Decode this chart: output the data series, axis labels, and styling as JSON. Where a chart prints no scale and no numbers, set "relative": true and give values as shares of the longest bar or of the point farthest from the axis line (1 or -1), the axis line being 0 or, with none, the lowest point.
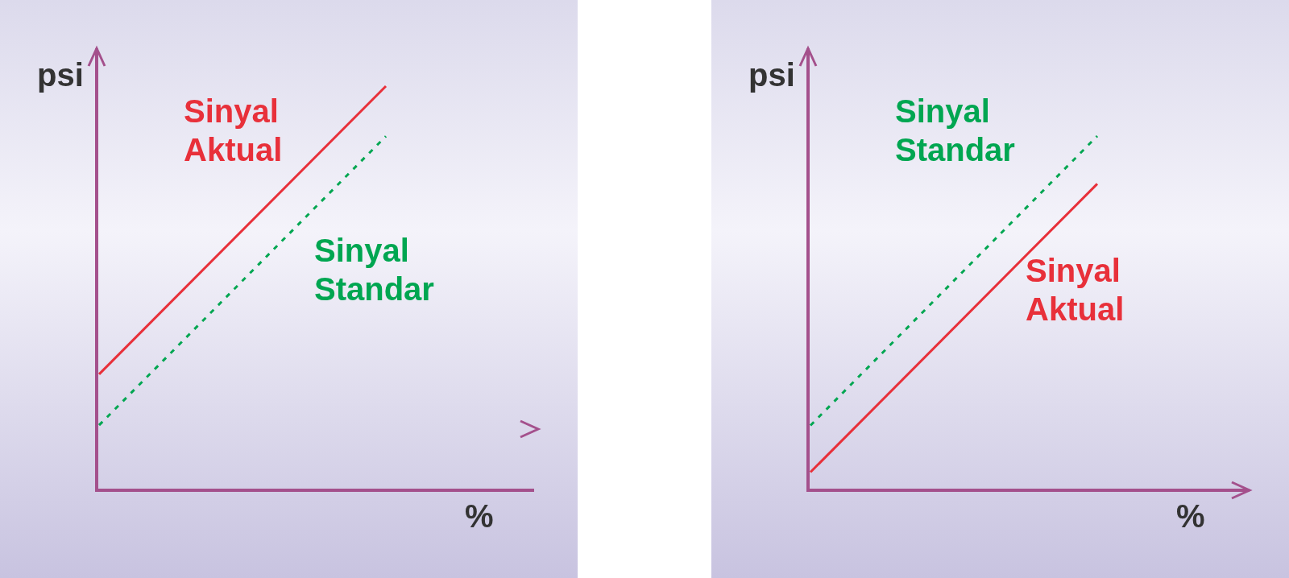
{
  "chart_data": [
    {
      "type": "line",
      "relative": true,
      "xlabel": "%",
      "ylabel": "psi",
      "categories": [
        null,
        null
      ],
      "series": [
        {
          "name": "Sinyal Aktual",
          "color": "#e8303a",
          "values": [
            0.287,
            1
          ],
          "line_style": "solid"
        },
        {
          "name": "Sinyal Standar",
          "color": "#00a651",
          "values": [
            0.161,
            0.876
          ],
          "line_style": "dotted"
        }
      ]
    },
    {
      "type": "line",
      "relative": true,
      "xlabel": "%",
      "ylabel": "psi",
      "categories": [
        null,
        null
      ],
      "series": [
        {
          "name": "Sinyal Standar",
          "color": "#00a651",
          "values": [
            0.183,
            1
          ],
          "line_style": "dotted"
        },
        {
          "name": "Sinyal Aktual",
          "color": "#e8303a",
          "values": [
            0.051,
            0.865
          ],
          "line_style": "solid"
        }
      ]
    }
  ]
}
